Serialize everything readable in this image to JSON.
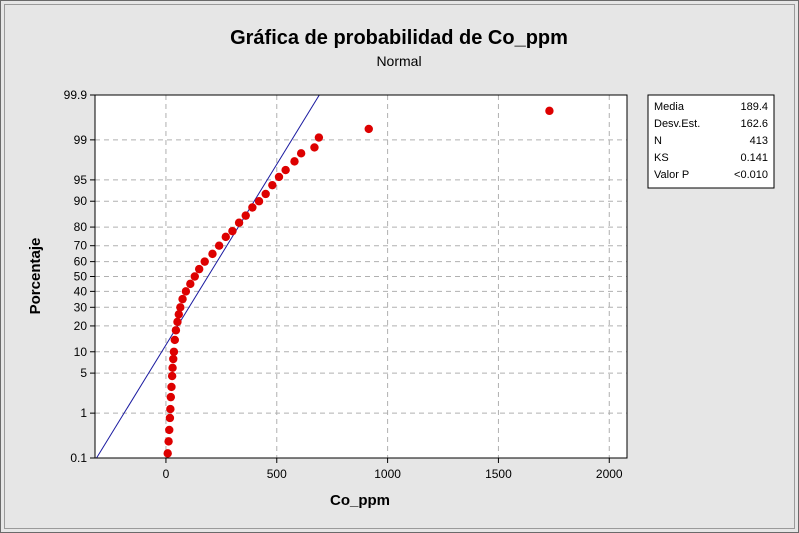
{
  "chart_data": {
    "type": "scatter",
    "title": "Gráfica de probabilidad de Co_ppm",
    "subtitle": "Normal",
    "xlabel": "Co_ppm",
    "ylabel": "Porcentaje",
    "xlim": [
      -320,
      2080
    ],
    "ylim": [
      0.1,
      99.9
    ],
    "y_scale": "normal-probability",
    "x_ticks": [
      0,
      500,
      1000,
      1500,
      2000
    ],
    "y_ticks": [
      0.1,
      1,
      5,
      10,
      20,
      30,
      40,
      50,
      60,
      70,
      80,
      90,
      95,
      99,
      99.9
    ],
    "y_tick_labels": [
      "0.1",
      "1",
      "5",
      "10",
      "20",
      "30",
      "40",
      "50",
      "60",
      "70",
      "80",
      "90",
      "95",
      "99",
      "99.9"
    ],
    "grid": true,
    "fit_line": {
      "mean": 189.4,
      "stdev": 162.6
    },
    "series": [
      {
        "color": "#dd0000",
        "points": [
          {
            "x": 8,
            "y": 0.13
          },
          {
            "x": 12,
            "y": 0.25
          },
          {
            "x": 15,
            "y": 0.45
          },
          {
            "x": 18,
            "y": 0.8
          },
          {
            "x": 20,
            "y": 1.2
          },
          {
            "x": 22,
            "y": 2
          },
          {
            "x": 25,
            "y": 3
          },
          {
            "x": 28,
            "y": 4.5
          },
          {
            "x": 30,
            "y": 6
          },
          {
            "x": 33,
            "y": 8
          },
          {
            "x": 36,
            "y": 10
          },
          {
            "x": 40,
            "y": 14
          },
          {
            "x": 45,
            "y": 18
          },
          {
            "x": 52,
            "y": 22
          },
          {
            "x": 58,
            "y": 26
          },
          {
            "x": 65,
            "y": 30
          },
          {
            "x": 75,
            "y": 35
          },
          {
            "x": 90,
            "y": 40
          },
          {
            "x": 110,
            "y": 45
          },
          {
            "x": 130,
            "y": 50
          },
          {
            "x": 150,
            "y": 55
          },
          {
            "x": 175,
            "y": 60
          },
          {
            "x": 210,
            "y": 65
          },
          {
            "x": 240,
            "y": 70
          },
          {
            "x": 270,
            "y": 75
          },
          {
            "x": 300,
            "y": 78
          },
          {
            "x": 330,
            "y": 82
          },
          {
            "x": 360,
            "y": 85
          },
          {
            "x": 390,
            "y": 88
          },
          {
            "x": 420,
            "y": 90
          },
          {
            "x": 450,
            "y": 92
          },
          {
            "x": 480,
            "y": 94
          },
          {
            "x": 510,
            "y": 95.5
          },
          {
            "x": 540,
            "y": 96.5
          },
          {
            "x": 580,
            "y": 97.5
          },
          {
            "x": 610,
            "y": 98.2
          },
          {
            "x": 670,
            "y": 98.6
          },
          {
            "x": 690,
            "y": 99.1
          },
          {
            "x": 915,
            "y": 99.4
          },
          {
            "x": 1730,
            "y": 99.76
          }
        ]
      }
    ]
  },
  "stats": [
    {
      "label": "Media",
      "value": "189.4"
    },
    {
      "label": "Desv.Est.",
      "value": "162.6"
    },
    {
      "label": "N",
      "value": "413"
    },
    {
      "label": "KS",
      "value": "0.141"
    },
    {
      "label": "Valor P",
      "value": "<0.010"
    }
  ]
}
